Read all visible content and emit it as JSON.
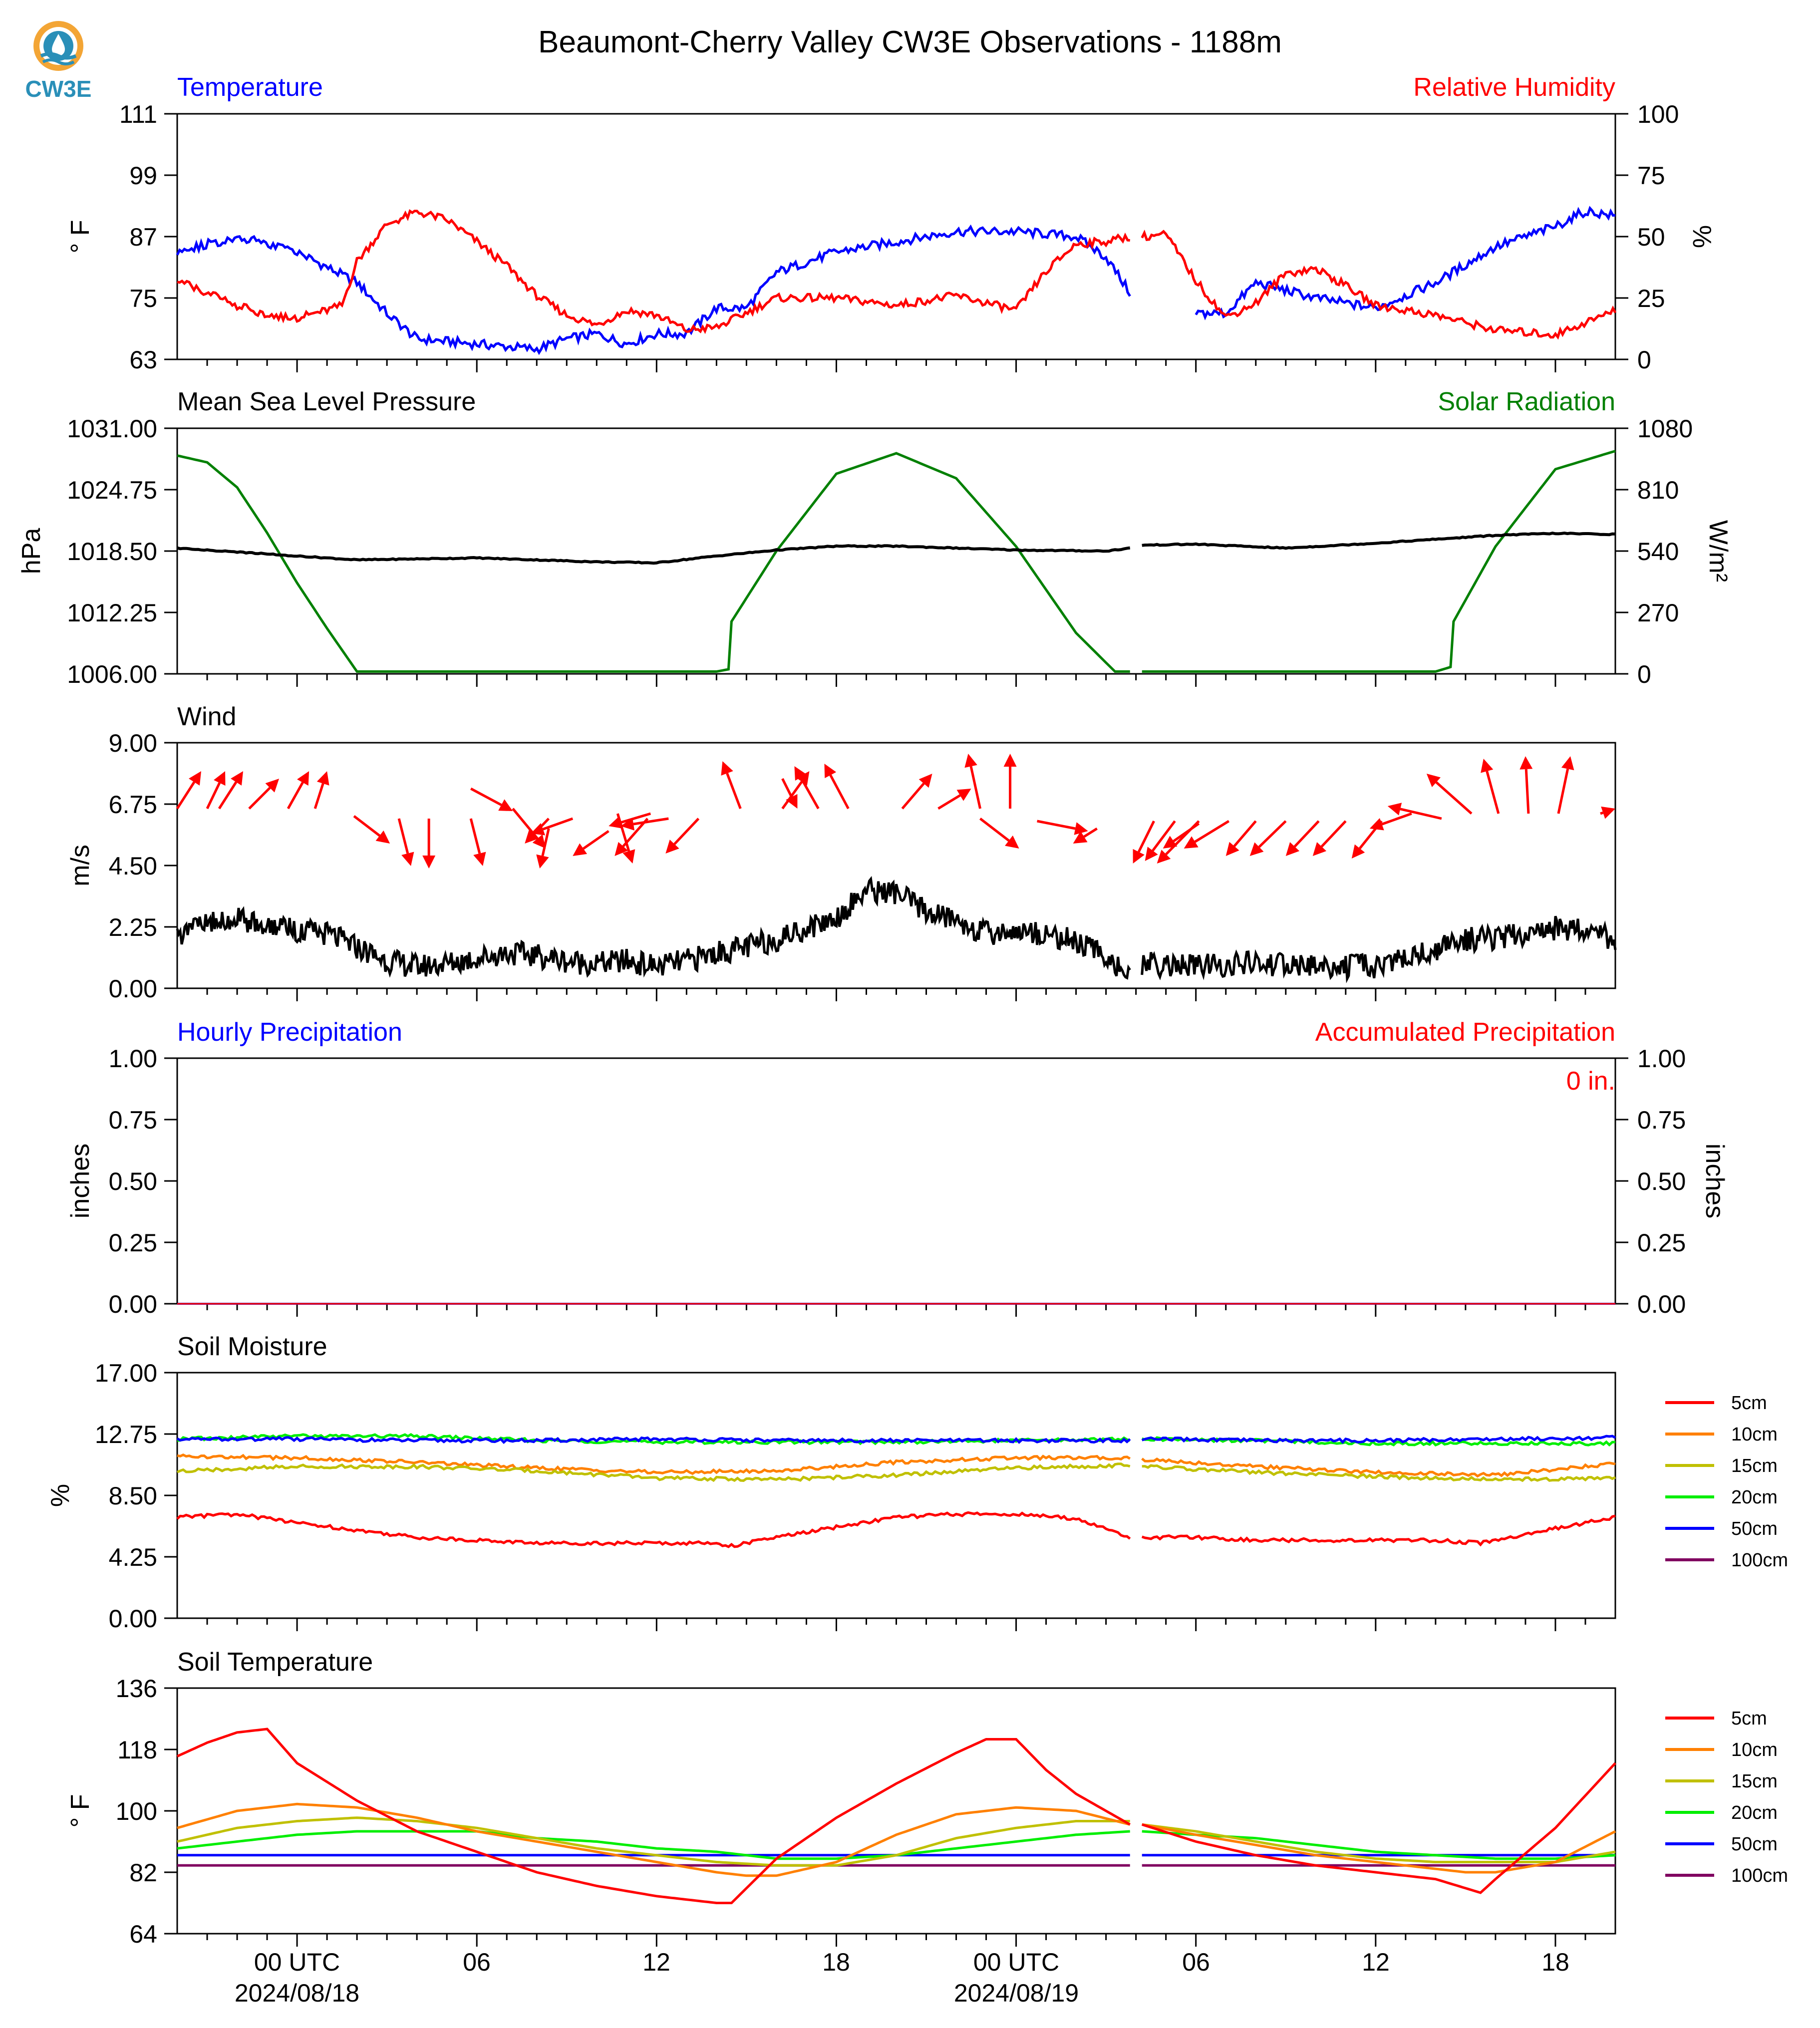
{
  "title": "Beaumont-Cherry Valley CW3E Observations - 1188m",
  "logo": {
    "text": "CW3E",
    "icon": "water-drop-logo-icon",
    "color": "#2a8fb8",
    "accent": "#f0a030"
  },
  "x_axis": {
    "ticks": [
      "00 UTC",
      "06",
      "12",
      "18",
      "00 UTC",
      "06",
      "12",
      "18"
    ],
    "dates": [
      "2024/08/18",
      "2024/08/19"
    ],
    "range_hours": [
      -4,
      44
    ]
  },
  "panels": {
    "temperature": {
      "left_title": "Temperature",
      "right_title": "Relative Humidity",
      "left_color": "#0000ff",
      "right_color": "#ff0000",
      "left_label": "° F",
      "right_label": "%",
      "left_ticks": [
        "111",
        "99",
        "87",
        "75",
        "63"
      ],
      "right_ticks": [
        "100",
        "75",
        "50",
        "25",
        "0"
      ]
    },
    "pressure": {
      "left_title": "Mean Sea Level Pressure",
      "right_title": "Solar Radiation",
      "left_color": "#000000",
      "right_color": "#008000",
      "left_label": "hPa",
      "right_label": "W/m²",
      "left_ticks": [
        "1031.00",
        "1024.75",
        "1018.50",
        "1012.25",
        "1006.00"
      ],
      "right_ticks": [
        "1080",
        "810",
        "540",
        "270",
        "0"
      ]
    },
    "wind": {
      "left_title": "Wind",
      "left_label": "m/s",
      "left_ticks": [
        "9.00",
        "6.75",
        "4.50",
        "2.25",
        "0.00"
      ],
      "arrow_color": "#ff0000"
    },
    "precip": {
      "left_title": "Hourly Precipitation",
      "right_title": "Accumulated Precipitation",
      "left_color": "#0000ff",
      "right_color": "#ff0000",
      "left_label": "inches",
      "right_label": "inches",
      "left_ticks": [
        "1.00",
        "0.75",
        "0.50",
        "0.25",
        "0.00"
      ],
      "right_ticks": [
        "1.00",
        "0.75",
        "0.50",
        "0.25",
        "0.00"
      ],
      "total_text": "0 in."
    },
    "soil_moisture": {
      "left_title": "Soil Moisture",
      "left_label": "%",
      "left_ticks": [
        "17.00",
        "12.75",
        "8.50",
        "4.25",
        "0.00"
      ]
    },
    "soil_temp": {
      "left_title": "Soil Temperature",
      "left_label": "° F",
      "left_ticks": [
        "136",
        "118",
        "100",
        "82",
        "64"
      ]
    }
  },
  "legend_depths": [
    {
      "label": "5cm",
      "color": "#ff0000"
    },
    {
      "label": "10cm",
      "color": "#ff8000"
    },
    {
      "label": "15cm",
      "color": "#c0c000"
    },
    {
      "label": "20cm",
      "color": "#00ee00"
    },
    {
      "label": "50cm",
      "color": "#0000ff"
    },
    {
      "label": "100cm",
      "color": "#800060"
    }
  ],
  "chart_data": [
    {
      "type": "line",
      "title": "Temperature / Relative Humidity",
      "x_unit": "hours from 2024-08-18 00 UTC",
      "ylim": [
        63,
        111
      ],
      "y2lim": [
        0,
        100
      ],
      "series": [
        {
          "name": "Temperature",
          "axis": "left",
          "color": "#0000ff",
          "x": [
            -4,
            -2,
            0,
            2,
            3,
            4,
            6,
            8,
            9,
            10,
            11,
            12,
            13,
            14,
            15,
            16,
            18,
            20,
            22,
            24,
            26,
            27,
            27.8,
            28.2,
            30,
            31,
            32,
            34,
            36,
            38,
            40,
            42,
            43,
            44
          ],
          "y": [
            84,
            87,
            84,
            78,
            72,
            67,
            66,
            65,
            67,
            68,
            66,
            68,
            68,
            73,
            73,
            80,
            84,
            86,
            88,
            88,
            87,
            83,
            76,
            null,
            72,
            72,
            78,
            75,
            73,
            78,
            85,
            89,
            92,
            91
          ]
        },
        {
          "name": "Relative Humidity",
          "axis": "right",
          "color": "#ff0000",
          "x": [
            -4,
            -2,
            -1,
            0,
            1,
            1.5,
            2,
            3,
            4,
            5,
            6,
            7,
            8,
            9,
            10,
            11,
            12,
            13,
            14,
            16,
            18,
            20,
            22,
            24,
            25,
            26,
            27,
            27.8,
            28.2,
            29,
            30,
            31,
            32,
            33,
            34,
            35,
            36,
            38,
            40,
            42,
            44
          ],
          "y": [
            32,
            22,
            18,
            17,
            20,
            22,
            40,
            55,
            60,
            57,
            48,
            38,
            26,
            18,
            14,
            20,
            18,
            12,
            13,
            25,
            25,
            22,
            26,
            20,
            36,
            47,
            48,
            50,
            50,
            51,
            32,
            17,
            23,
            35,
            37,
            30,
            22,
            18,
            12,
            10,
            20
          ]
        }
      ]
    },
    {
      "type": "line",
      "title": "Mean Sea Level Pressure / Solar Radiation",
      "ylim": [
        1006,
        1031
      ],
      "y2lim": [
        0,
        1080
      ],
      "series": [
        {
          "name": "Mean Sea Level Pressure",
          "axis": "left",
          "color": "#000000",
          "x": [
            -4,
            0,
            2,
            6,
            10,
            12,
            14,
            16,
            18,
            20,
            24,
            27,
            27.8,
            28.2,
            30,
            33,
            36,
            40,
            42,
            44
          ],
          "y": [
            1018.8,
            1018.0,
            1017.6,
            1017.8,
            1017.4,
            1017.3,
            1018.0,
            1018.6,
            1019.0,
            1019.0,
            1018.6,
            1018.5,
            1018.8,
            1019.1,
            1019.2,
            1018.8,
            1019.3,
            1020.1,
            1020.3,
            1020.2
          ]
        },
        {
          "name": "Solar Radiation",
          "axis": "right",
          "color": "#008000",
          "x": [
            -4,
            -3,
            -2,
            -1,
            0,
            1,
            2,
            8,
            14,
            14.4,
            14.5,
            16,
            18,
            20,
            22,
            24,
            26,
            27.3,
            27.8,
            28.2,
            38,
            38.5,
            38.6,
            40,
            42,
            44
          ],
          "y": [
            960,
            930,
            820,
            620,
            400,
            200,
            10,
            10,
            10,
            20,
            230,
            540,
            880,
            970,
            860,
            560,
            180,
            10,
            10,
            10,
            10,
            30,
            230,
            560,
            900,
            980
          ]
        }
      ]
    },
    {
      "type": "line",
      "title": "Wind",
      "ylim": [
        0,
        9
      ],
      "series": [
        {
          "name": "Wind",
          "color": "#000000",
          "x": [
            -4,
            -3,
            -2,
            -1,
            0,
            1,
            2,
            3,
            4,
            5,
            6,
            7,
            8,
            9,
            10,
            11,
            12,
            13,
            14,
            15,
            16,
            17,
            18,
            19,
            20,
            21,
            22,
            23,
            24,
            25,
            26,
            27,
            27.8,
            28.2,
            30,
            32,
            34,
            36,
            38,
            39,
            40,
            41,
            42,
            43,
            44
          ],
          "y": [
            2.0,
            2.3,
            2.6,
            2.3,
            2.1,
            2.0,
            1.5,
            1.0,
            0.8,
            0.9,
            1.1,
            1.3,
            1.2,
            1.0,
            0.9,
            1.0,
            0.8,
            1.0,
            1.3,
            1.5,
            1.8,
            2.2,
            2.6,
            3.6,
            3.5,
            2.8,
            2.5,
            2.0,
            2.1,
            2.0,
            1.7,
            1.2,
            0.4,
            0.9,
            0.8,
            0.9,
            0.8,
            0.8,
            1.4,
            1.8,
            1.8,
            2.0,
            2.2,
            2.2,
            1.8
          ]
        }
      ]
    },
    {
      "type": "line",
      "title": "Precipitation",
      "ylim": [
        0,
        1
      ],
      "series": [
        {
          "name": "Hourly Precipitation",
          "color": "#0000ff",
          "x": [
            -4,
            44
          ],
          "y": [
            0,
            0
          ]
        },
        {
          "name": "Accumulated Precipitation",
          "color": "#ff0000",
          "x": [
            -4,
            44
          ],
          "y": [
            0,
            0
          ]
        }
      ]
    },
    {
      "type": "line",
      "title": "Soil Moisture",
      "ylim": [
        0,
        17
      ],
      "series": [
        {
          "name": "5cm",
          "x": [
            -4,
            -2,
            0,
            2,
            4,
            6,
            8,
            10,
            12,
            14,
            14.5,
            16,
            18,
            20,
            22,
            24,
            26,
            27.8,
            28.2,
            30,
            32,
            34,
            36,
            38,
            39.5,
            40,
            42,
            44
          ],
          "y": [
            7.0,
            7.2,
            6.6,
            6.1,
            5.6,
            5.4,
            5.2,
            5.2,
            5.2,
            5.2,
            5.0,
            5.6,
            6.3,
            7.0,
            7.2,
            7.2,
            6.9,
            5.6,
            5.6,
            5.6,
            5.4,
            5.4,
            5.4,
            5.4,
            5.2,
            5.4,
            6.2,
            7.0
          ]
        },
        {
          "name": "10cm",
          "x": [
            -4,
            0,
            4,
            8,
            12,
            16,
            20,
            24,
            27.8,
            28.2,
            32,
            36,
            40,
            44
          ],
          "y": [
            11.2,
            11.1,
            10.8,
            10.4,
            10.1,
            10.2,
            10.8,
            11.1,
            11.1,
            11.0,
            10.5,
            10.1,
            9.9,
            10.7
          ]
        },
        {
          "name": "15cm",
          "x": [
            -4,
            0,
            4,
            8,
            12,
            16,
            20,
            24,
            27.8,
            28.2,
            32,
            36,
            40,
            44
          ],
          "y": [
            10.2,
            10.5,
            10.5,
            10.2,
            9.7,
            9.6,
            9.9,
            10.4,
            10.6,
            10.5,
            10.1,
            9.8,
            9.6,
            9.7
          ]
        },
        {
          "name": "20cm",
          "x": [
            -4,
            0,
            4,
            8,
            12,
            16,
            20,
            24,
            27.8,
            28.2,
            32,
            36,
            40,
            44
          ],
          "y": [
            12.4,
            12.6,
            12.6,
            12.3,
            12.2,
            12.2,
            12.2,
            12.3,
            12.4,
            12.4,
            12.3,
            12.1,
            12.1,
            12.1
          ]
        },
        {
          "name": "50cm",
          "x": [
            -4,
            0,
            4,
            8,
            12,
            16,
            20,
            24,
            27.8,
            28.2,
            32,
            36,
            40,
            44
          ],
          "y": [
            12.4,
            12.4,
            12.3,
            12.3,
            12.4,
            12.3,
            12.3,
            12.3,
            12.3,
            12.4,
            12.3,
            12.3,
            12.4,
            12.5
          ]
        },
        {
          "name": "100cm",
          "x": [],
          "y": []
        }
      ]
    },
    {
      "type": "line",
      "title": "Soil Temperature",
      "ylim": [
        64,
        136
      ],
      "series": [
        {
          "name": "5cm",
          "x": [
            -4,
            -3,
            -2,
            -1,
            0,
            2,
            4,
            6,
            8,
            10,
            12,
            14,
            14.5,
            16,
            18,
            20,
            22,
            23,
            24,
            25,
            26,
            27.8,
            28.2,
            30,
            32,
            34,
            36,
            38,
            39.5,
            40,
            42,
            44
          ],
          "y": [
            116,
            120,
            123,
            124,
            114,
            103,
            94,
            88,
            82,
            78,
            75,
            73,
            73,
            86,
            98,
            108,
            117,
            121,
            121,
            112,
            105,
            96,
            96,
            91,
            87,
            84,
            82,
            80,
            76,
            80,
            95,
            114
          ]
        },
        {
          "name": "10cm",
          "x": [
            -4,
            -2,
            0,
            2,
            4,
            6,
            8,
            10,
            12,
            14,
            15,
            16,
            18,
            20,
            22,
            24,
            26,
            27.8,
            28.2,
            30,
            32,
            34,
            36,
            38,
            39,
            40,
            42,
            44
          ],
          "y": [
            95,
            100,
            102,
            101,
            98,
            94,
            91,
            88,
            85,
            82,
            81,
            81,
            85,
            93,
            99,
            101,
            100,
            96,
            96,
            93,
            90,
            87,
            85,
            83,
            82,
            82,
            85,
            94
          ]
        },
        {
          "name": "15cm",
          "x": [
            -4,
            -2,
            0,
            2,
            4,
            6,
            8,
            10,
            12,
            14,
            16,
            18,
            20,
            22,
            24,
            26,
            27.8,
            28.2,
            30,
            32,
            34,
            36,
            38,
            40,
            42,
            44
          ],
          "y": [
            91,
            95,
            97,
            98,
            97,
            95,
            92,
            89,
            87,
            85,
            84,
            84,
            87,
            92,
            95,
            97,
            97,
            96,
            94,
            91,
            88,
            86,
            85,
            85,
            85,
            88
          ]
        },
        {
          "name": "20cm",
          "x": [
            -4,
            -2,
            0,
            2,
            4,
            6,
            8,
            10,
            12,
            14,
            16,
            18,
            20,
            22,
            24,
            26,
            27.8,
            28.2,
            30,
            32,
            34,
            36,
            38,
            40,
            42,
            44
          ],
          "y": [
            89,
            91,
            93,
            94,
            94,
            94,
            92,
            91,
            89,
            88,
            86,
            86,
            87,
            89,
            91,
            93,
            94,
            94,
            93,
            92,
            90,
            88,
            87,
            86,
            86,
            87
          ]
        },
        {
          "name": "50cm",
          "x": [
            -4,
            27.8,
            28.2,
            44
          ],
          "y": [
            87,
            87,
            87,
            87
          ]
        },
        {
          "name": "100cm",
          "x": [
            -4,
            27.8,
            28.2,
            44
          ],
          "y": [
            84,
            84,
            84,
            84
          ]
        }
      ]
    }
  ]
}
